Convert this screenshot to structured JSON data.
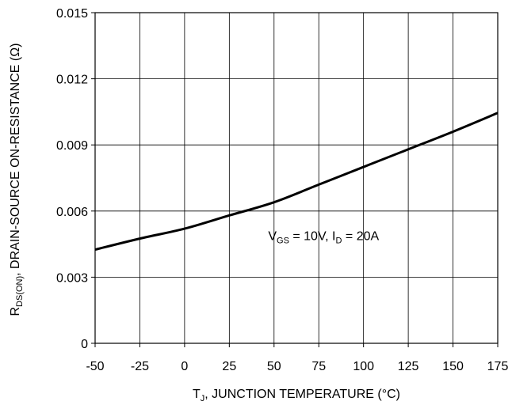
{
  "chart_data": {
    "type": "line",
    "title": "",
    "xlabel": {
      "main": "T",
      "sub": "J",
      "rest": ", JUNCTION TEMPERATURE (°C)"
    },
    "ylabel": {
      "main": "R",
      "sub": "DS(ON)",
      "rest": ", DRAIN-SOURCE ON-RESISTANCE (Ω)"
    },
    "xlim": [
      -50,
      175
    ],
    "ylim": [
      0,
      0.015
    ],
    "x_ticks": [
      -50,
      -25,
      0,
      25,
      50,
      75,
      100,
      125,
      150,
      175
    ],
    "y_ticks": [
      0,
      0.003,
      0.006,
      0.009,
      0.012,
      0.015
    ],
    "x_tick_labels": [
      "-50",
      "-25",
      "0",
      "25",
      "50",
      "75",
      "100",
      "125",
      "150",
      "175"
    ],
    "y_tick_labels": [
      "0",
      "0.003",
      "0.006",
      "0.009",
      "0.012",
      "0.015"
    ],
    "grid": true,
    "legend": "none",
    "series": [
      {
        "x": [
          -50,
          -25,
          0,
          25,
          50,
          75,
          100,
          125,
          150,
          175
        ],
        "y": [
          0.00425,
          0.00475,
          0.0052,
          0.0058,
          0.0064,
          0.0072,
          0.008,
          0.0088,
          0.0096,
          0.01045
        ],
        "color": "#000000"
      }
    ],
    "annotation": {
      "parts": [
        {
          "text": "V",
          "sub": false
        },
        {
          "text": "GS",
          "sub": true
        },
        {
          "text": " = 10V, I",
          "sub": false
        },
        {
          "text": "D",
          "sub": true
        },
        {
          "text": " = 20A",
          "sub": false
        }
      ],
      "x": 60,
      "y": 0.0049
    }
  }
}
